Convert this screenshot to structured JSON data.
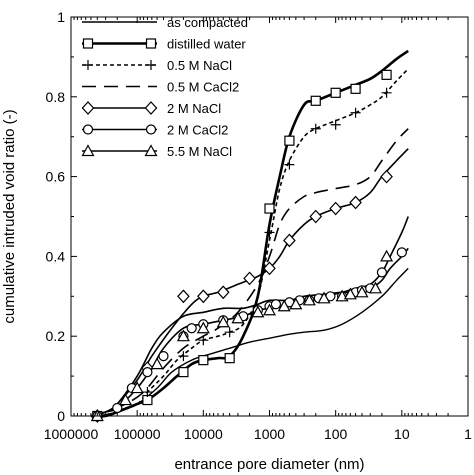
{
  "chart_data": {
    "type": "line",
    "title": "",
    "xlabel": "entrance pore diameter (nm)",
    "ylabel": "cumulative intruded void ratio (-)",
    "x_scale": "log",
    "x_reversed": true,
    "xlim": [
      1000000,
      1
    ],
    "ylim": [
      0,
      1
    ],
    "x_ticks": [
      1000000,
      100000,
      10000,
      1000,
      100,
      10,
      1
    ],
    "x_tick_labels": [
      "1000000",
      "100000",
      "10000",
      "1000",
      "100",
      "10",
      "1"
    ],
    "y_ticks": [
      0,
      0.2,
      0.4,
      0.6,
      0.8,
      1
    ],
    "y_tick_labels": [
      "0",
      "0.2",
      "0.4",
      "0.6",
      "0.8",
      "1"
    ],
    "grid": false,
    "legend_position": "top-left",
    "series": [
      {
        "name": "as compacted",
        "line": "solid-thin",
        "marker": "none",
        "x": [
          400000,
          200000,
          100000,
          50000,
          30000,
          15000,
          8000,
          4000,
          2000,
          1000,
          500,
          300,
          150,
          80,
          40,
          20,
          12,
          8
        ],
        "y": [
          0.0,
          0.01,
          0.03,
          0.07,
          0.11,
          0.14,
          0.155,
          0.17,
          0.185,
          0.195,
          0.205,
          0.21,
          0.215,
          0.23,
          0.26,
          0.3,
          0.34,
          0.37
        ]
      },
      {
        "name": "distilled water",
        "line": "solid-thick",
        "marker": "square",
        "x": [
          500000,
          300000,
          200000,
          100000,
          70000,
          40000,
          25000,
          15000,
          10000,
          6000,
          4000,
          2500,
          1500,
          1000,
          700,
          500,
          300,
          200,
          100,
          50,
          30,
          20,
          12,
          8
        ],
        "y": [
          0.0,
          0.0,
          0.01,
          0.03,
          0.04,
          0.07,
          0.1,
          0.13,
          0.14,
          0.145,
          0.15,
          0.2,
          0.3,
          0.48,
          0.6,
          0.7,
          0.78,
          0.79,
          0.81,
          0.83,
          0.845,
          0.865,
          0.895,
          0.915
        ],
        "marker_x": [
          400000,
          70000,
          20000,
          10000,
          4000,
          1000,
          500,
          200,
          100,
          50,
          17
        ],
        "marker_y": [
          0.0,
          0.04,
          0.11,
          0.14,
          0.145,
          0.52,
          0.69,
          0.79,
          0.81,
          0.82,
          0.855
        ]
      },
      {
        "name": "0.5 M NaCl",
        "line": "dashed",
        "marker": "plus",
        "x": [
          500000,
          300000,
          200000,
          100000,
          70000,
          40000,
          25000,
          15000,
          10000,
          6000,
          4000,
          2500,
          1500,
          1000,
          700,
          500,
          300,
          200,
          100,
          50,
          30,
          20,
          12,
          8
        ],
        "y": [
          0.0,
          0.0,
          0.01,
          0.03,
          0.06,
          0.1,
          0.14,
          0.17,
          0.19,
          0.2,
          0.21,
          0.23,
          0.3,
          0.44,
          0.57,
          0.64,
          0.7,
          0.72,
          0.74,
          0.76,
          0.78,
          0.8,
          0.84,
          0.87
        ],
        "marker_x": [
          400000,
          70000,
          20000,
          10000,
          4000,
          1000,
          500,
          200,
          100,
          50,
          17
        ],
        "marker_y": [
          0.0,
          0.06,
          0.15,
          0.19,
          0.21,
          0.46,
          0.63,
          0.72,
          0.73,
          0.76,
          0.81
        ]
      },
      {
        "name": "0.5 M CaCl2",
        "line": "long-dash",
        "marker": "none",
        "x": [
          500000,
          300000,
          150000,
          80000,
          40000,
          20000,
          10000,
          6000,
          3000,
          1500,
          1000,
          700,
          500,
          300,
          200,
          100,
          50,
          30,
          20,
          12,
          8
        ],
        "y": [
          0.0,
          0.01,
          0.03,
          0.06,
          0.12,
          0.17,
          0.2,
          0.22,
          0.26,
          0.33,
          0.4,
          0.48,
          0.52,
          0.55,
          0.56,
          0.57,
          0.58,
          0.6,
          0.64,
          0.69,
          0.72
        ]
      },
      {
        "name": "2 M NaCl",
        "line": "solid",
        "marker": "diamond",
        "x": [
          500000,
          300000,
          200000,
          100000,
          60000,
          30000,
          15000,
          10000,
          6000,
          3000,
          1500,
          1000,
          700,
          500,
          300,
          200,
          100,
          50,
          30,
          20,
          12,
          8
        ],
        "y": [
          0.0,
          0.01,
          0.03,
          0.09,
          0.15,
          0.22,
          0.28,
          0.3,
          0.31,
          0.33,
          0.35,
          0.37,
          0.4,
          0.44,
          0.48,
          0.5,
          0.52,
          0.535,
          0.56,
          0.6,
          0.64,
          0.67
        ],
        "marker_x": [
          400000,
          70000,
          20000,
          10000,
          5000,
          2000,
          1000,
          500,
          200,
          100,
          50,
          17
        ],
        "marker_y": [
          0.0,
          0.12,
          0.3,
          0.3,
          0.31,
          0.345,
          0.37,
          0.44,
          0.5,
          0.52,
          0.535,
          0.6
        ]
      },
      {
        "name": "2 M CaCl2",
        "line": "solid",
        "marker": "circle",
        "x": [
          500000,
          300000,
          200000,
          100000,
          60000,
          40000,
          20000,
          10000,
          5000,
          2500,
          1500,
          1000,
          500,
          300,
          150,
          80,
          50,
          30,
          20,
          15,
          10,
          8
        ],
        "y": [
          0.0,
          0.01,
          0.03,
          0.1,
          0.17,
          0.21,
          0.25,
          0.26,
          0.27,
          0.27,
          0.28,
          0.29,
          0.29,
          0.3,
          0.305,
          0.31,
          0.31,
          0.32,
          0.34,
          0.37,
          0.4,
          0.42
        ],
        "marker_x": [
          400000,
          200000,
          120000,
          70000,
          40000,
          20000,
          15000,
          10000,
          5000,
          2500,
          1500,
          1000,
          800,
          500,
          350,
          250,
          180,
          120,
          80,
          50,
          40,
          30,
          20,
          10
        ],
        "marker_y": [
          0.0,
          0.02,
          0.07,
          0.11,
          0.15,
          0.2,
          0.22,
          0.23,
          0.24,
          0.25,
          0.265,
          0.275,
          0.28,
          0.285,
          0.29,
          0.29,
          0.295,
          0.3,
          0.3,
          0.31,
          0.315,
          0.32,
          0.36,
          0.41
        ]
      },
      {
        "name": "5.5 M NaCl",
        "line": "solid",
        "marker": "triangle",
        "x": [
          500000,
          300000,
          200000,
          100000,
          60000,
          40000,
          20000,
          10000,
          5000,
          2500,
          1500,
          1000,
          500,
          300,
          150,
          80,
          50,
          30,
          20,
          15,
          10,
          8
        ],
        "y": [
          0.0,
          0.01,
          0.02,
          0.07,
          0.12,
          0.17,
          0.22,
          0.23,
          0.24,
          0.25,
          0.265,
          0.27,
          0.28,
          0.29,
          0.3,
          0.31,
          0.32,
          0.33,
          0.36,
          0.4,
          0.46,
          0.5
        ],
        "marker_x": [
          400000,
          150000,
          100000,
          50000,
          20000,
          10000,
          5000,
          3000,
          1500,
          1000,
          600,
          400,
          250,
          150,
          80,
          60,
          40,
          25,
          17
        ],
        "marker_y": [
          0.0,
          0.04,
          0.07,
          0.13,
          0.2,
          0.22,
          0.235,
          0.245,
          0.26,
          0.265,
          0.275,
          0.28,
          0.29,
          0.295,
          0.3,
          0.305,
          0.31,
          0.32,
          0.4
        ]
      }
    ]
  }
}
